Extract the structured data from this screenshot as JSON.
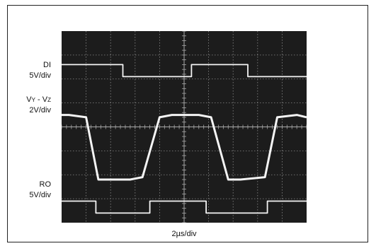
{
  "chart_data": {
    "type": "line",
    "title": "",
    "xlabel": "2µs/div",
    "grid": true,
    "divisions": {
      "x": 10,
      "y": 8
    },
    "xlim": [
      0,
      10
    ],
    "channels": [
      {
        "name": "DI",
        "scale": "5V/div",
        "x": [
          0,
          0.3,
          2.5,
          2.5,
          5.3,
          5.3,
          7.6,
          7.6,
          10
        ],
        "y": [
          6.6,
          6.6,
          6.6,
          6.1,
          6.1,
          6.6,
          6.6,
          6.1,
          6.1
        ]
      },
      {
        "name": "VY - VZ",
        "scale": "2V/div",
        "x": [
          0,
          0.3,
          1.0,
          1.5,
          2.8,
          3.3,
          4.0,
          4.5,
          5.6,
          6.1,
          6.8,
          7.3,
          8.3,
          8.8,
          9.6,
          10
        ],
        "y": [
          4.5,
          4.5,
          4.4,
          1.8,
          1.8,
          1.9,
          4.4,
          4.5,
          4.5,
          4.4,
          1.8,
          1.8,
          1.9,
          4.4,
          4.5,
          4.4
        ]
      },
      {
        "name": "RO",
        "scale": "5V/div",
        "x": [
          0,
          0.3,
          1.4,
          1.4,
          3.6,
          3.6,
          5.9,
          5.9,
          8.4,
          8.4,
          10
        ],
        "y": [
          0.9,
          0.9,
          0.9,
          0.4,
          0.4,
          0.9,
          0.9,
          0.4,
          0.4,
          0.9,
          0.9
        ]
      }
    ],
    "labels": {
      "ch1_name": "DI",
      "ch1_scale": "5V/div",
      "ch2_name_main": "V",
      "ch2_sub1": "Y",
      "ch2_mid": " - V",
      "ch2_sub2": "Z",
      "ch2_scale": "2V/div",
      "ch3_name": "RO",
      "ch3_scale": "5V/div"
    }
  }
}
